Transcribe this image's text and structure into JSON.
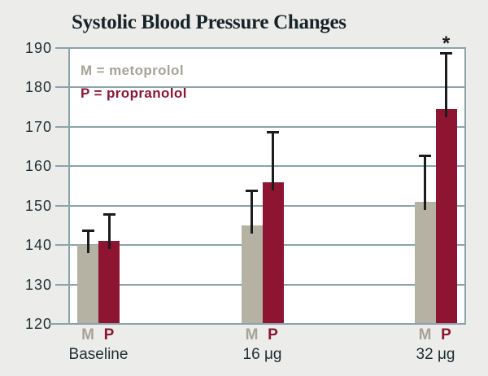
{
  "colors": {
    "page_background": "#ecedea",
    "plot_background": "#ffffff",
    "grid": "#8ba3ab",
    "text_dark": "#1e2d33",
    "error_bar": "#1a1c1e"
  },
  "chart_data": {
    "type": "bar",
    "title": "Systolic Blood Pressure Changes",
    "categories": [
      "Baseline",
      "16 μg",
      "32 μg"
    ],
    "series": [
      {
        "name": "M",
        "legend_label": "M = metoprolol",
        "color": "#b5b2a3",
        "label_color": "#a6a396",
        "values": [
          140,
          145,
          151
        ],
        "error_plus": [
          4,
          9,
          12
        ]
      },
      {
        "name": "P",
        "legend_label": "P = propranolol",
        "color": "#8e1531",
        "label_color": "#8e1531",
        "values": [
          141,
          156,
          174.5
        ],
        "error_plus": [
          7,
          13,
          14.5
        ]
      }
    ],
    "ylim": [
      120,
      190
    ],
    "yticks": [
      120,
      130,
      140,
      150,
      160,
      170,
      180,
      190
    ],
    "xlabel": "",
    "ylabel": "",
    "grid": true,
    "legend_position": "top-left-inside",
    "significance": {
      "category": "32 μg",
      "series": "P",
      "symbol": "*"
    }
  }
}
